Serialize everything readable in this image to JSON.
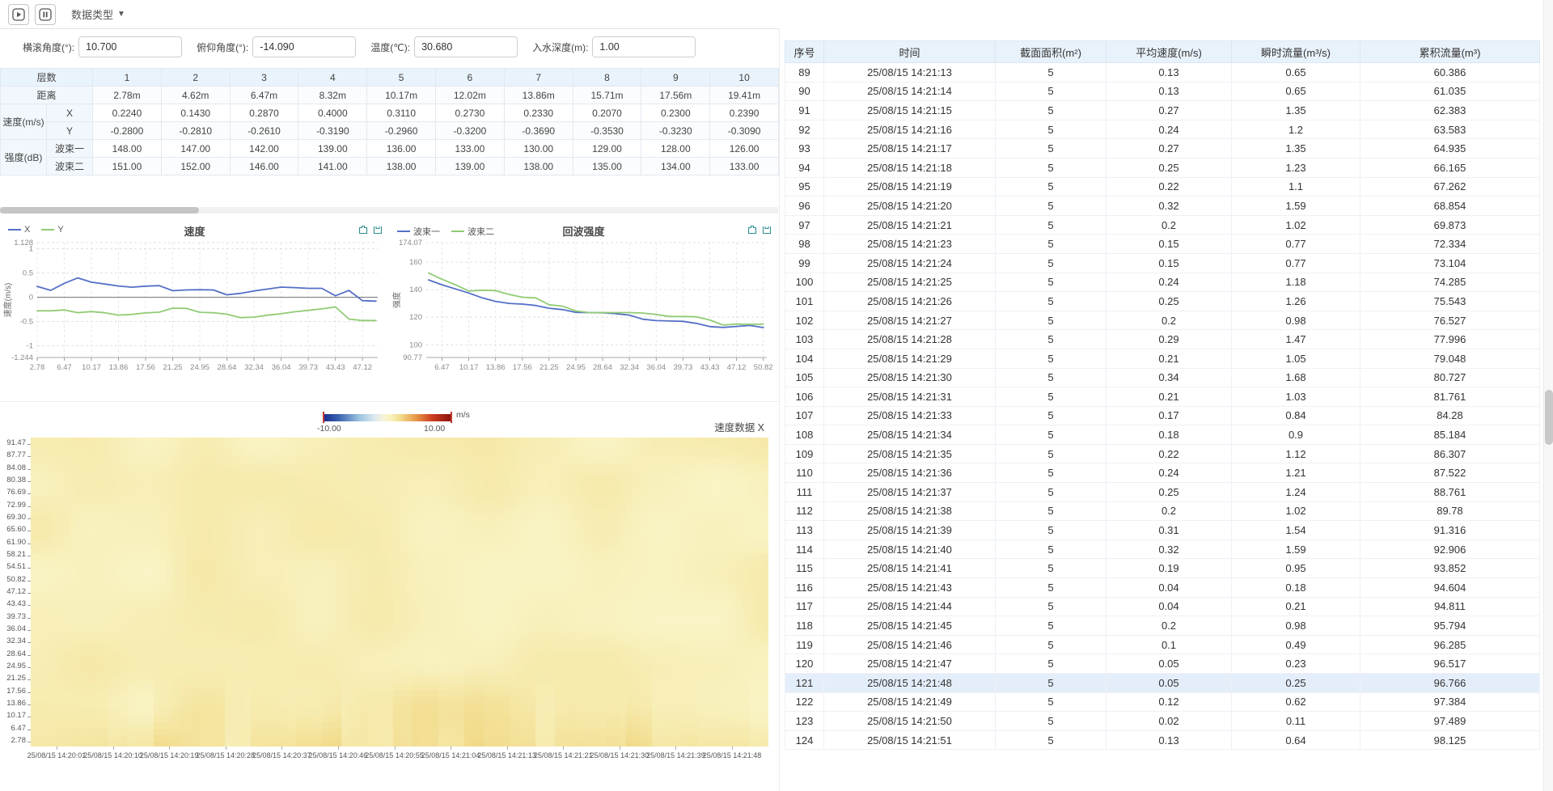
{
  "toolbar": {
    "data_type_label": "数据类型"
  },
  "sensor_inputs": [
    {
      "label": "横滚角度(°):",
      "value": "10.700"
    },
    {
      "label": "俯仰角度(°):",
      "value": "-14.090"
    },
    {
      "label": "温度(℃):",
      "value": "30.680"
    },
    {
      "label": "入水深度(m):",
      "value": "1.00"
    }
  ],
  "layer_table": {
    "corner_label": "层数",
    "layer_numbers": [
      "1",
      "2",
      "3",
      "4",
      "5",
      "6",
      "7",
      "8",
      "9",
      "10"
    ],
    "distance_label": "距离",
    "distance": [
      "2.78m",
      "4.62m",
      "6.47m",
      "8.32m",
      "10.17m",
      "12.02m",
      "13.86m",
      "15.71m",
      "17.56m",
      "19.41m"
    ],
    "velocity_group_label": "速度(m/s)",
    "velocity_x_label": "X",
    "velocity_x": [
      "0.2240",
      "0.1430",
      "0.2870",
      "0.4000",
      "0.3110",
      "0.2730",
      "0.2330",
      "0.2070",
      "0.2300",
      "0.2390"
    ],
    "velocity_y_label": "Y",
    "velocity_y": [
      "-0.2800",
      "-0.2810",
      "-0.2610",
      "-0.3190",
      "-0.2960",
      "-0.3200",
      "-0.3690",
      "-0.3530",
      "-0.3230",
      "-0.3090"
    ],
    "intensity_group_label": "强度(dB)",
    "beam1_label": "波束一",
    "beam1": [
      "148.00",
      "147.00",
      "142.00",
      "139.00",
      "136.00",
      "133.00",
      "130.00",
      "129.00",
      "128.00",
      "126.00"
    ],
    "beam2_label": "波束二",
    "beam2": [
      "151.00",
      "152.00",
      "146.00",
      "141.00",
      "138.00",
      "139.00",
      "138.00",
      "135.00",
      "134.00",
      "133.00"
    ]
  },
  "chart_data": [
    {
      "type": "line",
      "title": "速度",
      "ylabel": "速度(m/s)",
      "legend": [
        "X",
        "Y"
      ],
      "colors": [
        "#5470c6",
        "#91cc75"
      ],
      "xlim": [
        2.78,
        49.2
      ],
      "ylim": [
        -1.244,
        1.128
      ],
      "y_ticks": [
        "1.128",
        "1",
        "0.5",
        "0",
        "-0.5",
        "-1",
        "-1.244"
      ],
      "x_ticks": [
        "2.78",
        "6.47",
        "10.17",
        "13.86",
        "17.56",
        "21.25",
        "24.95",
        "28.64",
        "32.34",
        "36.04",
        "39.73",
        "43.43",
        "47.12"
      ],
      "x": [
        2.78,
        4.62,
        6.47,
        8.32,
        10.17,
        12.02,
        13.86,
        15.71,
        17.56,
        19.41,
        21.25,
        23.1,
        24.95,
        26.79,
        28.64,
        30.49,
        32.34,
        34.19,
        36.04,
        37.88,
        39.73,
        41.58,
        43.43,
        45.27,
        47.12,
        48.97
      ],
      "series": [
        {
          "name": "X",
          "values": [
            0.224,
            0.143,
            0.287,
            0.4,
            0.311,
            0.273,
            0.233,
            0.207,
            0.23,
            0.239,
            0.135,
            0.15,
            0.155,
            0.15,
            0.05,
            0.08,
            0.13,
            0.17,
            0.21,
            0.2,
            0.185,
            0.185,
            0.03,
            0.14,
            -0.07,
            -0.08
          ]
        },
        {
          "name": "Y",
          "values": [
            -0.28,
            -0.281,
            -0.261,
            -0.319,
            -0.296,
            -0.32,
            -0.369,
            -0.353,
            -0.323,
            -0.309,
            -0.225,
            -0.23,
            -0.31,
            -0.32,
            -0.35,
            -0.42,
            -0.41,
            -0.37,
            -0.34,
            -0.3,
            -0.27,
            -0.24,
            -0.2,
            -0.45,
            -0.48,
            -0.48
          ]
        }
      ],
      "zero_line": true,
      "grid": "dashed",
      "legend_position": "top-left"
    },
    {
      "type": "line",
      "title": "回波强度",
      "ylabel": "强度",
      "legend": [
        "波束一",
        "波束二"
      ],
      "colors": [
        "#5470c6",
        "#91cc75"
      ],
      "xlim": [
        4.3,
        51.3
      ],
      "ylim": [
        90.77,
        174.07
      ],
      "y_ticks": [
        "174.07",
        "160",
        "140",
        "120",
        "100",
        "90.77"
      ],
      "x_ticks": [
        "6.47",
        "10.17",
        "13.86",
        "17.56",
        "21.25",
        "24.95",
        "28.64",
        "32.34",
        "36.04",
        "39.73",
        "43.43",
        "47.12",
        "50.82"
      ],
      "x": [
        4.62,
        6.47,
        8.32,
        10.17,
        12.02,
        13.86,
        15.71,
        17.56,
        19.41,
        21.25,
        23.1,
        24.95,
        26.79,
        28.64,
        30.49,
        32.34,
        34.19,
        36.04,
        37.88,
        39.73,
        41.58,
        43.43,
        45.27,
        47.12,
        48.97,
        50.82
      ],
      "series": [
        {
          "name": "波束一",
          "values": [
            147,
            143.5,
            140.5,
            137.5,
            134,
            131.5,
            130,
            129.5,
            128.5,
            126.5,
            125.5,
            123.5,
            123.3,
            123.2,
            122.5,
            121.5,
            118.5,
            117.5,
            117.2,
            117,
            115.5,
            113.2,
            112.6,
            113.3,
            114,
            112.5
          ]
        },
        {
          "name": "波束二",
          "values": [
            152,
            147.5,
            143.5,
            139,
            139.5,
            139.3,
            136.5,
            134.5,
            134,
            129,
            128,
            124.5,
            123.3,
            123.3,
            123.3,
            123.3,
            123,
            122,
            120.5,
            120.5,
            120.3,
            118,
            114.3,
            115,
            114.8,
            115
          ]
        }
      ],
      "zero_line": false,
      "grid": "dashed",
      "legend_position": "top-left"
    },
    {
      "type": "heatmap",
      "title": "速度数据 X",
      "unit": "m/s",
      "colorbar": {
        "min_label": "-10.00",
        "max_label": "10.00",
        "unit": "m/s",
        "stops": [
          {
            "t": 0.0,
            "c": "#1c2b8f"
          },
          {
            "t": 0.12,
            "c": "#3a64b0"
          },
          {
            "t": 0.28,
            "c": "#9cc4e0"
          },
          {
            "t": 0.4,
            "c": "#dce9ee"
          },
          {
            "t": 0.47,
            "c": "#f6f4d8"
          },
          {
            "t": 0.52,
            "c": "#f9f3c2"
          },
          {
            "t": 0.6,
            "c": "#f2dd8e"
          },
          {
            "t": 0.72,
            "c": "#e89a4a"
          },
          {
            "t": 0.85,
            "c": "#cc3d20"
          },
          {
            "t": 1.0,
            "c": "#8a120c"
          }
        ]
      },
      "y_ticks": [
        "91.47",
        "87.77",
        "84.08",
        "80.38",
        "76.69",
        "72.99",
        "69.30",
        "65.60",
        "61.90",
        "58.21",
        "54.51",
        "50.82",
        "47.12",
        "43.43",
        "39.73",
        "36.04",
        "32.34",
        "28.64",
        "24.95",
        "21.25",
        "17.56",
        "13.86",
        "10.17",
        "6.47",
        "2.78"
      ],
      "x_ticks": [
        "25/08/15 14:20:01",
        "25/08/15 14:20:10",
        "25/08/15 14:20:19",
        "25/08/15 14:20:28",
        "25/08/15 14:20:37",
        "25/08/15 14:20:46",
        "25/08/15 14:20:55",
        "25/08/15 14:21:04",
        "25/08/15 14:21:13",
        "25/08/15 14:21:21",
        "25/08/15 14:21:30",
        "25/08/15 14:21:39",
        "25/08/15 14:21:48"
      ],
      "value_range_estimate": [
        0,
        2.5
      ],
      "note": "field is predominantly pale yellow (≈0–2 m/s) with darker yellow vertical streaks near the bottom"
    }
  ],
  "flow_table": {
    "columns": [
      "序号",
      "时间",
      "截面面积(m²)",
      "平均速度(m/s)",
      "瞬时流量(m³/s)",
      "累积流量(m³)"
    ],
    "selected_row_number": "121",
    "rows": [
      [
        "89",
        "25/08/15 14:21:13",
        "5",
        "0.13",
        "0.65",
        "60.386"
      ],
      [
        "90",
        "25/08/15 14:21:14",
        "5",
        "0.13",
        "0.65",
        "61.035"
      ],
      [
        "91",
        "25/08/15 14:21:15",
        "5",
        "0.27",
        "1.35",
        "62.383"
      ],
      [
        "92",
        "25/08/15 14:21:16",
        "5",
        "0.24",
        "1.2",
        "63.583"
      ],
      [
        "93",
        "25/08/15 14:21:17",
        "5",
        "0.27",
        "1.35",
        "64.935"
      ],
      [
        "94",
        "25/08/15 14:21:18",
        "5",
        "0.25",
        "1.23",
        "66.165"
      ],
      [
        "95",
        "25/08/15 14:21:19",
        "5",
        "0.22",
        "1.1",
        "67.262"
      ],
      [
        "96",
        "25/08/15 14:21:20",
        "5",
        "0.32",
        "1.59",
        "68.854"
      ],
      [
        "97",
        "25/08/15 14:21:21",
        "5",
        "0.2",
        "1.02",
        "69.873"
      ],
      [
        "98",
        "25/08/15 14:21:23",
        "5",
        "0.15",
        "0.77",
        "72.334"
      ],
      [
        "99",
        "25/08/15 14:21:24",
        "5",
        "0.15",
        "0.77",
        "73.104"
      ],
      [
        "100",
        "25/08/15 14:21:25",
        "5",
        "0.24",
        "1.18",
        "74.285"
      ],
      [
        "101",
        "25/08/15 14:21:26",
        "5",
        "0.25",
        "1.26",
        "75.543"
      ],
      [
        "102",
        "25/08/15 14:21:27",
        "5",
        "0.2",
        "0.98",
        "76.527"
      ],
      [
        "103",
        "25/08/15 14:21:28",
        "5",
        "0.29",
        "1.47",
        "77.996"
      ],
      [
        "104",
        "25/08/15 14:21:29",
        "5",
        "0.21",
        "1.05",
        "79.048"
      ],
      [
        "105",
        "25/08/15 14:21:30",
        "5",
        "0.34",
        "1.68",
        "80.727"
      ],
      [
        "106",
        "25/08/15 14:21:31",
        "5",
        "0.21",
        "1.03",
        "81.761"
      ],
      [
        "107",
        "25/08/15 14:21:33",
        "5",
        "0.17",
        "0.84",
        "84.28"
      ],
      [
        "108",
        "25/08/15 14:21:34",
        "5",
        "0.18",
        "0.9",
        "85.184"
      ],
      [
        "109",
        "25/08/15 14:21:35",
        "5",
        "0.22",
        "1.12",
        "86.307"
      ],
      [
        "110",
        "25/08/15 14:21:36",
        "5",
        "0.24",
        "1.21",
        "87.522"
      ],
      [
        "111",
        "25/08/15 14:21:37",
        "5",
        "0.25",
        "1.24",
        "88.761"
      ],
      [
        "112",
        "25/08/15 14:21:38",
        "5",
        "0.2",
        "1.02",
        "89.78"
      ],
      [
        "113",
        "25/08/15 14:21:39",
        "5",
        "0.31",
        "1.54",
        "91.316"
      ],
      [
        "114",
        "25/08/15 14:21:40",
        "5",
        "0.32",
        "1.59",
        "92.906"
      ],
      [
        "115",
        "25/08/15 14:21:41",
        "5",
        "0.19",
        "0.95",
        "93.852"
      ],
      [
        "116",
        "25/08/15 14:21:43",
        "5",
        "0.04",
        "0.18",
        "94.604"
      ],
      [
        "117",
        "25/08/15 14:21:44",
        "5",
        "0.04",
        "0.21",
        "94.811"
      ],
      [
        "118",
        "25/08/15 14:21:45",
        "5",
        "0.2",
        "0.98",
        "95.794"
      ],
      [
        "119",
        "25/08/15 14:21:46",
        "5",
        "0.1",
        "0.49",
        "96.285"
      ],
      [
        "120",
        "25/08/15 14:21:47",
        "5",
        "0.05",
        "0.23",
        "96.517"
      ],
      [
        "121",
        "25/08/15 14:21:48",
        "5",
        "0.05",
        "0.25",
        "96.766"
      ],
      [
        "122",
        "25/08/15 14:21:49",
        "5",
        "0.12",
        "0.62",
        "97.384"
      ],
      [
        "123",
        "25/08/15 14:21:50",
        "5",
        "0.02",
        "0.11",
        "97.489"
      ],
      [
        "124",
        "25/08/15 14:21:51",
        "5",
        "0.13",
        "0.64",
        "98.125"
      ]
    ]
  }
}
